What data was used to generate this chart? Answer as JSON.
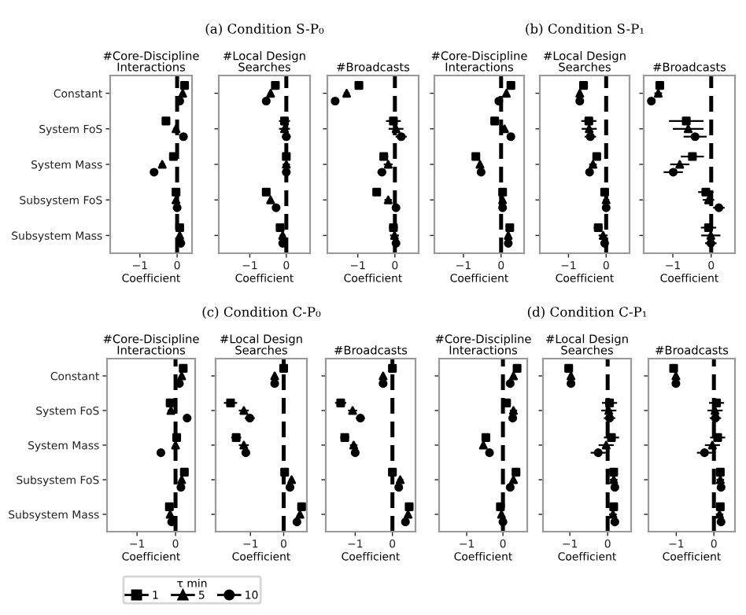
{
  "chart_data": [
    {
      "type": "scatter",
      "orientation": "horizontal",
      "title": "#Core-Discipline\nInteractions",
      "annotations": [
        "(a) Condition S-P₀"
      ],
      "xlabel": "Coefficient",
      "categories": [
        "Constant",
        "System FoS",
        "System Mass",
        "Subsystem FoS",
        "Subsystem Mass"
      ],
      "xlim": [
        -1.8,
        0.4
      ],
      "xticks": [
        -1,
        0
      ],
      "ref_lines": [
        {
          "axis": "x",
          "value": 0,
          "line_style": "dashed",
          "color": "#000000"
        }
      ],
      "grid": false,
      "series": [
        {
          "marker": "square",
          "color": "#000000",
          "values": [
            0.2,
            -0.3,
            -0.1,
            -0.03,
            0.07
          ],
          "errors": [
            0.05,
            0.08,
            0.08,
            0.05,
            0.05
          ]
        },
        {
          "marker": "triangle",
          "color": "#000000",
          "values": [
            0.15,
            -0.03,
            -0.4,
            -0.03,
            0.07
          ],
          "errors": [
            0.05,
            0.08,
            0.08,
            0.05,
            0.05
          ]
        },
        {
          "marker": "circle",
          "color": "#000000",
          "values": [
            0.07,
            0.17,
            -0.62,
            0.0,
            0.1
          ],
          "errors": [
            0.05,
            0.05,
            0.06,
            0.05,
            0.05
          ]
        }
      ]
    },
    {
      "type": "scatter",
      "orientation": "horizontal",
      "title": "#Local Design\nSearches",
      "xlabel": "Coefficient",
      "tick_labels": "x",
      "categories": [
        null,
        null,
        null,
        null,
        null
      ],
      "xlim": [
        -1.85,
        0.65
      ],
      "xticks": [
        -1,
        0
      ],
      "ref_lines": [
        {
          "axis": "x",
          "value": 0,
          "line_style": "dashed",
          "color": "#000000"
        }
      ],
      "grid": false,
      "series": [
        {
          "marker": "square",
          "color": "#000000",
          "values": [
            -0.3,
            -0.05,
            0.0,
            -0.55,
            -0.17
          ],
          "errors": [
            0.05,
            0.15,
            0.1,
            0.06,
            0.08
          ]
        },
        {
          "marker": "triangle",
          "color": "#000000",
          "values": [
            -0.43,
            -0.05,
            0.0,
            -0.43,
            -0.1
          ],
          "errors": [
            0.05,
            0.15,
            0.1,
            0.06,
            0.08
          ]
        },
        {
          "marker": "circle",
          "color": "#000000",
          "values": [
            -0.55,
            0.0,
            0.0,
            -0.28,
            -0.1
          ],
          "errors": [
            0.05,
            0.12,
            0.1,
            0.06,
            0.08
          ]
        }
      ]
    },
    {
      "type": "scatter",
      "orientation": "horizontal",
      "title": "#Broadcasts",
      "xlabel": "Coefficient",
      "tick_labels": "x",
      "categories": [
        null,
        null,
        null,
        null,
        null
      ],
      "xlim": [
        -1.82,
        0.64
      ],
      "xticks": [
        -1,
        0
      ],
      "ref_lines": [
        {
          "axis": "x",
          "value": 0,
          "line_style": "dashed",
          "color": "#000000"
        }
      ],
      "grid": false,
      "series": [
        {
          "marker": "square",
          "color": "#000000",
          "values": [
            -0.97,
            -0.04,
            -0.3,
            -0.49,
            -0.04
          ],
          "errors": [
            0.08,
            0.2,
            0.12,
            0.1,
            0.12
          ]
        },
        {
          "marker": "triangle",
          "color": "#000000",
          "values": [
            -1.3,
            0.03,
            -0.18,
            -0.18,
            -0.01
          ],
          "errors": [
            0.08,
            0.2,
            0.12,
            0.1,
            0.12
          ]
        },
        {
          "marker": "circle",
          "color": "#000000",
          "values": [
            -1.61,
            0.17,
            -0.35,
            0.03,
            0.03
          ],
          "errors": [
            0.08,
            0.15,
            0.12,
            0.08,
            0.1
          ]
        }
      ]
    },
    {
      "type": "scatter",
      "orientation": "horizontal",
      "title": "#Core-Discipline\nInteractions",
      "annotations": [
        "(b) Condition S-P₁"
      ],
      "xlabel": "Coefficient",
      "tick_labels": "x",
      "categories": [
        null,
        null,
        null,
        null,
        null
      ],
      "xlim": [
        -1.77,
        0.61
      ],
      "xticks": [
        -1,
        0
      ],
      "ref_lines": [
        {
          "axis": "x",
          "value": 0,
          "line_style": "dashed",
          "color": "#000000"
        }
      ],
      "grid": false,
      "series": [
        {
          "marker": "square",
          "color": "#000000",
          "values": [
            0.26,
            -0.17,
            -0.67,
            0.04,
            0.23
          ],
          "errors": [
            0.05,
            0.1,
            0.06,
            0.05,
            0.05
          ]
        },
        {
          "marker": "triangle",
          "color": "#000000",
          "values": [
            0.14,
            0.09,
            -0.56,
            0.04,
            0.19
          ],
          "errors": [
            0.05,
            0.06,
            0.06,
            0.05,
            0.05
          ]
        },
        {
          "marker": "circle",
          "color": "#000000",
          "values": [
            -0.06,
            0.26,
            -0.53,
            0.04,
            0.19
          ],
          "errors": [
            0.05,
            0.06,
            0.06,
            0.05,
            0.05
          ]
        }
      ]
    },
    {
      "type": "scatter",
      "orientation": "horizontal",
      "title": "#Local Design\nSearches",
      "xlabel": "Coefficient",
      "tick_labels": "x",
      "categories": [
        null,
        null,
        null,
        null,
        null
      ],
      "xlim": [
        -1.76,
        0.62
      ],
      "xticks": [
        -1,
        0
      ],
      "ref_lines": [
        {
          "axis": "x",
          "value": 0,
          "line_style": "dashed",
          "color": "#000000"
        }
      ],
      "grid": false,
      "series": [
        {
          "marker": "square",
          "color": "#000000",
          "values": [
            -0.6,
            -0.46,
            -0.25,
            -0.04,
            -0.21
          ],
          "errors": [
            0.05,
            0.2,
            0.1,
            0.08,
            0.12
          ]
        },
        {
          "marker": "triangle",
          "color": "#000000",
          "values": [
            -0.7,
            -0.45,
            -0.35,
            0.0,
            -0.08
          ],
          "errors": [
            0.05,
            0.2,
            0.1,
            0.08,
            0.12
          ]
        },
        {
          "marker": "circle",
          "color": "#000000",
          "values": [
            -0.7,
            -0.42,
            -0.44,
            0.0,
            -0.04
          ],
          "errors": [
            0.05,
            0.15,
            0.1,
            0.05,
            0.08
          ]
        }
      ]
    },
    {
      "type": "scatter",
      "orientation": "horizontal",
      "title": "#Broadcasts",
      "xlabel": "Coefficient",
      "tick_labels": "x",
      "categories": [
        null,
        null,
        null,
        null,
        null
      ],
      "xlim": [
        -1.76,
        0.62
      ],
      "xticks": [
        -1,
        0
      ],
      "ref_lines": [
        {
          "axis": "x",
          "value": 0,
          "line_style": "dashed",
          "color": "#000000"
        }
      ],
      "grid": false,
      "series": [
        {
          "marker": "square",
          "color": "#000000",
          "values": [
            -1.34,
            -0.65,
            -0.49,
            -0.14,
            -0.07
          ],
          "errors": [
            0.1,
            0.45,
            0.3,
            0.2,
            0.2
          ]
        },
        {
          "marker": "triangle",
          "color": "#000000",
          "values": [
            -1.38,
            -0.6,
            -0.82,
            -0.07,
            -0.01
          ],
          "errors": [
            0.1,
            0.4,
            0.25,
            0.15,
            0.25
          ]
        },
        {
          "marker": "circle",
          "color": "#000000",
          "values": [
            -1.56,
            -0.42,
            -0.99,
            0.2,
            -0.01
          ],
          "errors": [
            0.1,
            0.3,
            0.25,
            0.15,
            0.15
          ]
        }
      ]
    },
    {
      "type": "scatter",
      "orientation": "horizontal",
      "title": "#Core-Discipline\nInteractions",
      "annotations": [
        "(c) Condition C-P₀"
      ],
      "xlabel": "Coefficient",
      "legend": "bottom",
      "legend_title": "τ min",
      "categories": [
        "Constant",
        "System FoS",
        "System Mass",
        "Subsystem FoS",
        "Subsystem Mass"
      ],
      "xlim": [
        -1.78,
        0.51
      ],
      "xticks": [
        -1,
        0
      ],
      "ref_lines": [
        {
          "axis": "x",
          "value": 0,
          "line_style": "dashed",
          "color": "#000000"
        }
      ],
      "grid": false,
      "series": [
        {
          "name": "1",
          "marker": "square",
          "color": "#000000",
          "values": [
            0.2,
            -0.14,
            0.03,
            0.23,
            -0.16
          ],
          "errors": [
            0.05,
            0.08,
            0.06,
            0.05,
            0.06
          ]
        },
        {
          "name": "5",
          "marker": "triangle",
          "color": "#000000",
          "values": [
            0.16,
            -0.12,
            0.0,
            0.16,
            -0.14
          ],
          "errors": [
            0.05,
            0.08,
            0.06,
            0.05,
            0.06
          ]
        },
        {
          "name": "10",
          "marker": "circle",
          "color": "#000000",
          "values": [
            0.1,
            0.3,
            -0.38,
            0.14,
            -0.1
          ],
          "errors": [
            0.05,
            0.05,
            0.05,
            0.05,
            0.06
          ]
        }
      ]
    },
    {
      "type": "scatter",
      "orientation": "horizontal",
      "title": "#Local Design\nSearches",
      "xlabel": "Coefficient",
      "tick_labels": "x",
      "categories": [
        null,
        null,
        null,
        null,
        null
      ],
      "xlim": [
        -2.05,
        0.7
      ],
      "xticks": [
        -1,
        0
      ],
      "ref_lines": [
        {
          "axis": "x",
          "value": 0,
          "line_style": "dashed",
          "color": "#000000"
        }
      ],
      "grid": false,
      "series": [
        {
          "marker": "square",
          "color": "#000000",
          "values": [
            0.0,
            -1.6,
            -1.43,
            0.03,
            0.54
          ],
          "errors": [
            0.05,
            0.2,
            0.15,
            0.08,
            0.06
          ]
        },
        {
          "marker": "triangle",
          "color": "#000000",
          "values": [
            -0.27,
            -1.2,
            -1.2,
            0.24,
            0.49
          ],
          "errors": [
            0.05,
            0.15,
            0.15,
            0.08,
            0.06
          ]
        },
        {
          "marker": "circle",
          "color": "#000000",
          "values": [
            -0.27,
            -1.02,
            -1.14,
            0.19,
            0.4
          ],
          "errors": [
            0.05,
            0.15,
            0.12,
            0.08,
            0.08
          ]
        }
      ]
    },
    {
      "type": "scatter",
      "orientation": "horizontal",
      "title": "#Broadcasts",
      "xlabel": "Coefficient",
      "tick_labels": "x",
      "categories": [
        null,
        null,
        null,
        null,
        null
      ],
      "xlim": [
        -1.79,
        0.62
      ],
      "xticks": [
        -1,
        0
      ],
      "ref_lines": [
        {
          "axis": "x",
          "value": 0,
          "line_style": "dashed",
          "color": "#000000"
        }
      ],
      "grid": false,
      "series": [
        {
          "marker": "square",
          "color": "#000000",
          "values": [
            0.0,
            -1.39,
            -1.28,
            0.0,
            0.45
          ],
          "errors": [
            0.05,
            0.15,
            0.12,
            0.08,
            0.06
          ]
        },
        {
          "marker": "triangle",
          "color": "#000000",
          "values": [
            -0.25,
            -1.07,
            -1.04,
            0.21,
            0.42
          ],
          "errors": [
            0.05,
            0.12,
            0.1,
            0.08,
            0.06
          ]
        },
        {
          "marker": "circle",
          "color": "#000000",
          "values": [
            -0.25,
            -0.86,
            -1.0,
            0.17,
            0.35
          ],
          "errors": [
            0.05,
            0.12,
            0.1,
            0.08,
            0.08
          ]
        }
      ]
    },
    {
      "type": "scatter",
      "orientation": "horizontal",
      "title": "#Core-Discipline\nInteractions",
      "annotations": [
        "(d) Condition C-P₁"
      ],
      "xlabel": "Coefficient",
      "tick_labels": "x",
      "categories": [
        null,
        null,
        null,
        null,
        null
      ],
      "xlim": [
        -1.76,
        0.67
      ],
      "xticks": [
        -1,
        0
      ],
      "ref_lines": [
        {
          "axis": "x",
          "value": 0,
          "line_style": "dashed",
          "color": "#000000"
        }
      ],
      "grid": false,
      "series": [
        {
          "marker": "square",
          "color": "#000000",
          "values": [
            0.39,
            0.1,
            -0.47,
            0.36,
            -0.07
          ],
          "errors": [
            0.05,
            0.08,
            0.06,
            0.05,
            0.05
          ]
        },
        {
          "marker": "triangle",
          "color": "#000000",
          "values": [
            0.29,
            0.29,
            -0.54,
            0.29,
            -0.04
          ],
          "errors": [
            0.05,
            0.1,
            0.06,
            0.05,
            0.05
          ]
        },
        {
          "marker": "circle",
          "color": "#000000",
          "values": [
            0.2,
            0.27,
            -0.37,
            0.2,
            0.0
          ],
          "errors": [
            0.05,
            0.06,
            0.06,
            0.05,
            0.05
          ]
        }
      ]
    },
    {
      "type": "scatter",
      "orientation": "horizontal",
      "title": "#Local Design\nSearches",
      "xlabel": "Coefficient",
      "tick_labels": "x",
      "categories": [
        null,
        null,
        null,
        null,
        null
      ],
      "xlim": [
        -1.71,
        0.62
      ],
      "xticks": [
        -1,
        0
      ],
      "ref_lines": [
        {
          "axis": "x",
          "value": 0,
          "line_style": "dashed",
          "color": "#000000"
        }
      ],
      "grid": false,
      "series": [
        {
          "marker": "square",
          "color": "#000000",
          "values": [
            -1.03,
            0.05,
            0.1,
            0.16,
            0.16
          ],
          "errors": [
            0.05,
            0.2,
            0.2,
            0.1,
            0.1
          ]
        },
        {
          "marker": "triangle",
          "color": "#000000",
          "values": [
            -0.97,
            0.03,
            -0.04,
            0.16,
            0.14
          ],
          "errors": [
            0.05,
            0.2,
            0.2,
            0.1,
            0.1
          ]
        },
        {
          "marker": "circle",
          "color": "#000000",
          "values": [
            -0.97,
            0.05,
            -0.25,
            0.19,
            0.19
          ],
          "errors": [
            0.05,
            0.15,
            0.2,
            0.08,
            0.08
          ]
        }
      ]
    },
    {
      "type": "scatter",
      "orientation": "horizontal",
      "title": "#Broadcasts",
      "xlabel": "Coefficient",
      "tick_labels": "x",
      "categories": [
        null,
        null,
        null,
        null,
        null
      ],
      "xlim": [
        -1.74,
        0.56
      ],
      "xticks": [
        -1,
        0
      ],
      "ref_lines": [
        {
          "axis": "x",
          "value": 0,
          "line_style": "dashed",
          "color": "#000000"
        }
      ],
      "grid": false,
      "series": [
        {
          "marker": "square",
          "color": "#000000",
          "values": [
            -1.07,
            0.07,
            0.1,
            0.17,
            0.17
          ],
          "errors": [
            0.05,
            0.2,
            0.2,
            0.1,
            0.1
          ]
        },
        {
          "marker": "triangle",
          "color": "#000000",
          "values": [
            -1.01,
            0.03,
            -0.04,
            0.17,
            0.15
          ],
          "errors": [
            0.05,
            0.2,
            0.2,
            0.1,
            0.1
          ]
        },
        {
          "marker": "circle",
          "color": "#000000",
          "values": [
            -1.01,
            0.04,
            -0.25,
            0.19,
            0.19
          ],
          "errors": [
            0.05,
            0.15,
            0.2,
            0.08,
            0.08
          ]
        }
      ]
    }
  ]
}
